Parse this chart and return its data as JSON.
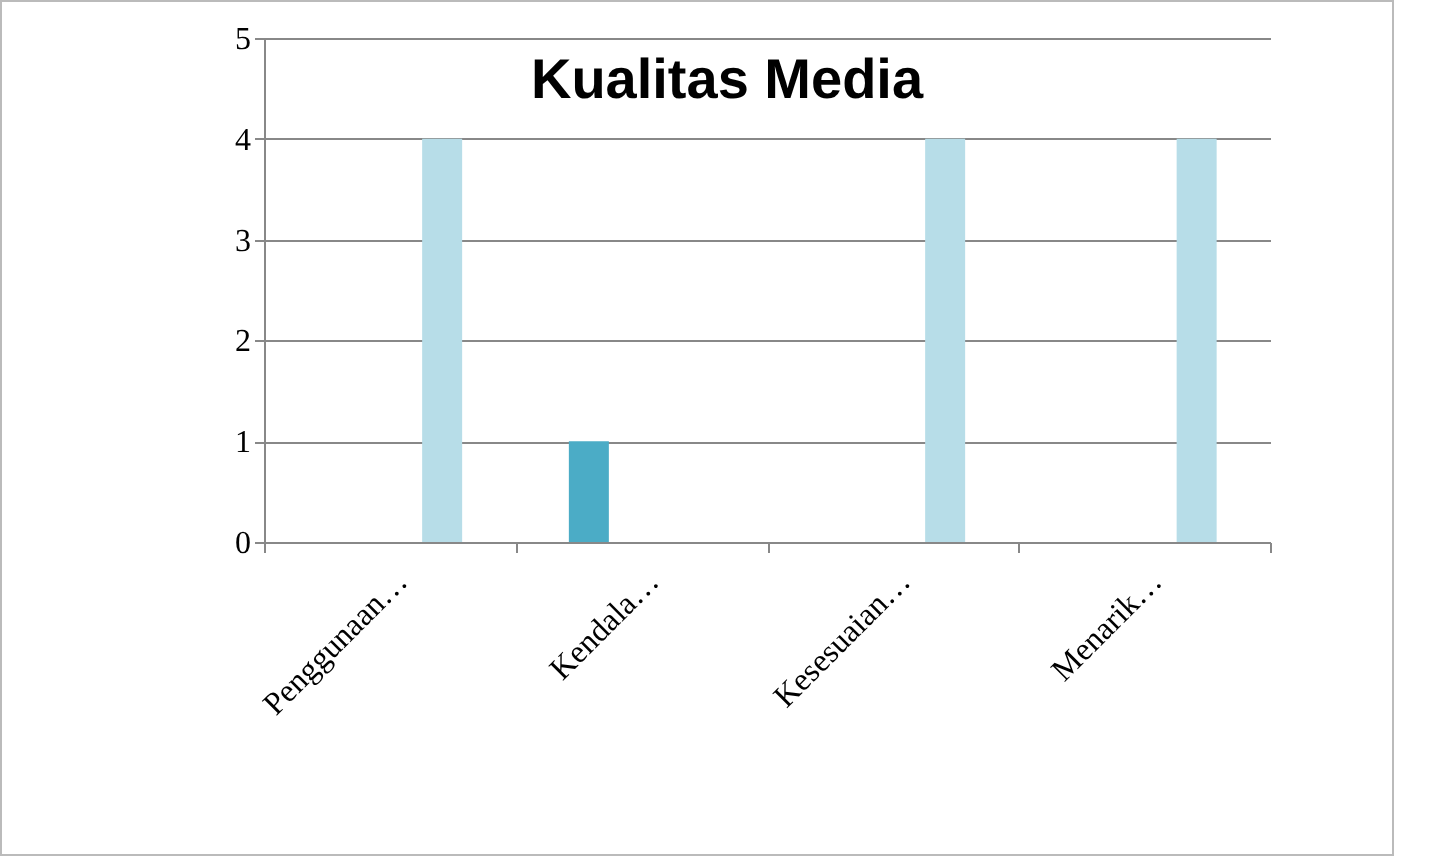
{
  "chart_data": {
    "type": "bar",
    "title": "Kualitas Media",
    "categories": [
      "Penggunaan…",
      "Kendala…",
      "Kesesuaian…",
      "Menarik…"
    ],
    "series": [
      {
        "color": "#4bacc6",
        "values": [
          0,
          1,
          0,
          0
        ]
      },
      {
        "color": "#b7dde8",
        "values": [
          4,
          0,
          4,
          4
        ]
      }
    ],
    "ylim": [
      0,
      5
    ],
    "yticks": [
      0,
      1,
      2,
      3,
      4,
      5
    ],
    "grid": "y",
    "legend": false
  }
}
